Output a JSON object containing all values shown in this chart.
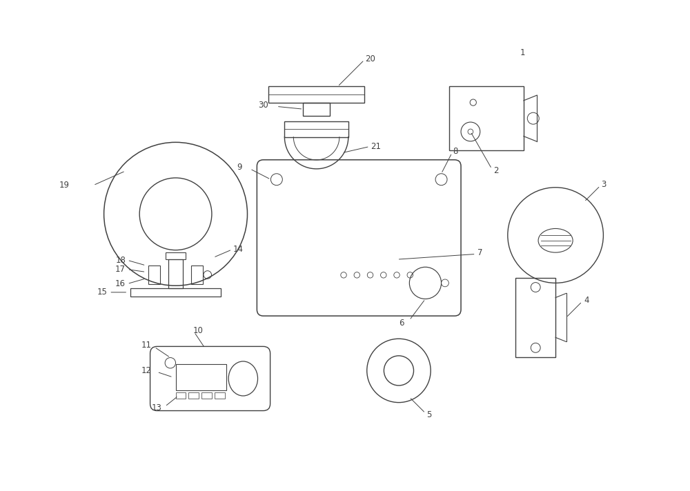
{
  "bg_color": "#ffffff",
  "line_color": "#404040",
  "lw": 1.0,
  "fs": 8.5,
  "fig_width": 10.0,
  "fig_height": 7.12
}
